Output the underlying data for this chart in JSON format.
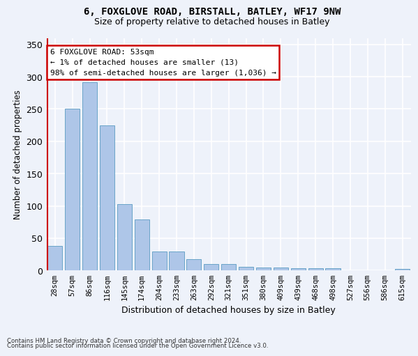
{
  "title_line1": "6, FOXGLOVE ROAD, BIRSTALL, BATLEY, WF17 9NW",
  "title_line2": "Size of property relative to detached houses in Batley",
  "xlabel": "Distribution of detached houses by size in Batley",
  "ylabel": "Number of detached properties",
  "bar_color": "#aec6e8",
  "bar_edge_color": "#5a9bc2",
  "categories": [
    "28sqm",
    "57sqm",
    "86sqm",
    "116sqm",
    "145sqm",
    "174sqm",
    "204sqm",
    "233sqm",
    "263sqm",
    "292sqm",
    "321sqm",
    "351sqm",
    "380sqm",
    "409sqm",
    "439sqm",
    "468sqm",
    "498sqm",
    "527sqm",
    "556sqm",
    "586sqm",
    "615sqm"
  ],
  "values": [
    38,
    250,
    291,
    225,
    103,
    79,
    29,
    29,
    18,
    10,
    10,
    6,
    5,
    5,
    4,
    4,
    4,
    0,
    0,
    0,
    3
  ],
  "highlight_index": 0,
  "ylim": [
    0,
    360
  ],
  "yticks": [
    0,
    50,
    100,
    150,
    200,
    250,
    300,
    350
  ],
  "annotation_line1": "6 FOXGLOVE ROAD: 53sqm",
  "annotation_line2": "← 1% of detached houses are smaller (13)",
  "annotation_line3": "98% of semi-detached houses are larger (1,036) →",
  "footnote1": "Contains HM Land Registry data © Crown copyright and database right 2024.",
  "footnote2": "Contains public sector information licensed under the Open Government Licence v3.0.",
  "background_color": "#eef2fa",
  "grid_color": "#ffffff",
  "highlight_line_color": "#cc0000",
  "annotation_box_color": "#cc0000",
  "annotation_bg": "#ffffff"
}
